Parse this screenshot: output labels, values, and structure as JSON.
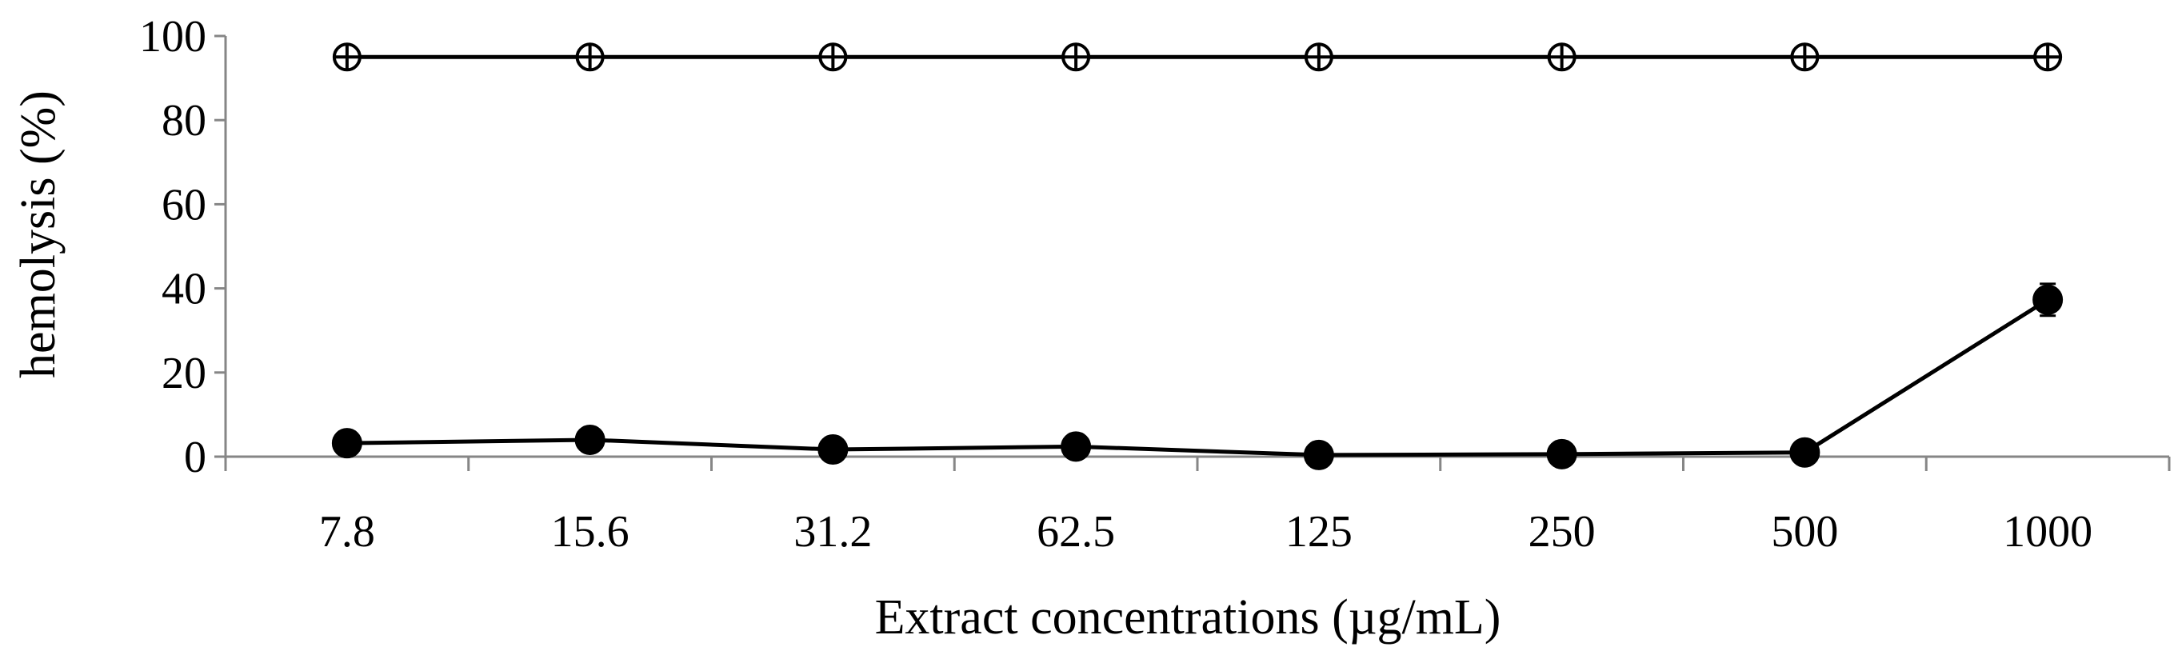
{
  "chart_data": {
    "type": "line",
    "title": "",
    "xlabel": "Extract concentrations (µg/mL)",
    "ylabel": "hemolysis (%)",
    "categories": [
      "7.8",
      "15.6",
      "31.2",
      "62.5",
      "125",
      "250",
      "500",
      "1000"
    ],
    "ylim": [
      0,
      100
    ],
    "yticks": [
      0,
      20,
      40,
      60,
      80,
      100
    ],
    "grid": false,
    "legend": "none",
    "series": [
      {
        "marker": "open-circle-cross",
        "color": "#000000",
        "values": [
          95,
          95,
          95,
          95,
          95,
          95,
          95,
          95
        ],
        "errors": [
          0.5,
          0.5,
          0.5,
          0.5,
          0.5,
          0.5,
          0.5,
          0.5
        ]
      },
      {
        "marker": "filled-circle",
        "color": "#000000",
        "values": [
          3.2,
          4.0,
          1.7,
          2.4,
          0.4,
          0.6,
          1.0,
          37.3
        ],
        "errors": [
          0.3,
          0.3,
          0.3,
          0.3,
          0.2,
          0.2,
          0.3,
          3.8
        ]
      }
    ]
  }
}
